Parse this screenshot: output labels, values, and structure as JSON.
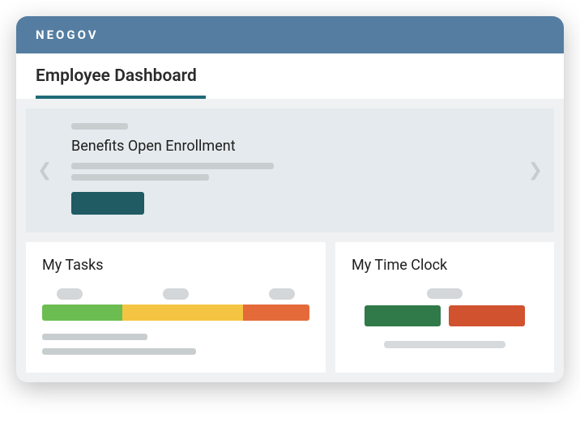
{
  "brand": "NEOGOV",
  "page_title": "Employee Dashboard",
  "tab_underline_color": "#1f6b77",
  "banner": {
    "title": "Benefits Open Enrollment",
    "button_color": "#205a63",
    "background": "#e4eaed"
  },
  "tasks_card": {
    "title": "My Tasks",
    "segments": [
      {
        "color": "#6bbd51",
        "width_pct": 30
      },
      {
        "color": "#f4c542",
        "width_pct": 45
      },
      {
        "color": "#e46a3a",
        "width_pct": 25
      }
    ]
  },
  "clock_card": {
    "title": "My Time Clock",
    "buttons": [
      {
        "color": "#2f7a48"
      },
      {
        "color": "#d1522e"
      }
    ]
  },
  "colors": {
    "topbar": "#547da1",
    "page_bg": "#f0f1f2",
    "skeleton": "#c8cdd0"
  }
}
